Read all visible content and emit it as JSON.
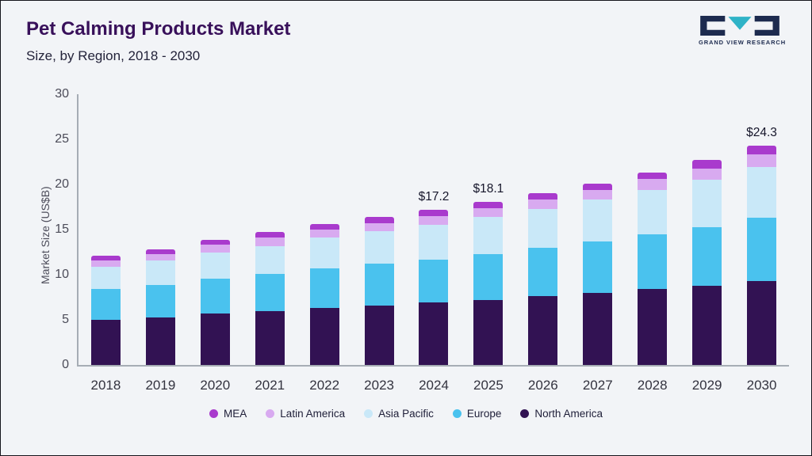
{
  "header": {
    "title": "Pet Calming Products Market",
    "subtitle": "Size, by Region, 2018 - 2030",
    "logo_text": "GRAND VIEW RESEARCH"
  },
  "colors": {
    "background": "#f2f4f7",
    "title": "#38105a",
    "axis": "#a6adb5",
    "logo_dark": "#1d2b4f",
    "logo_teal": "#2fb3c7"
  },
  "chart_data": {
    "type": "bar",
    "stacked": true,
    "title": "Pet Calming Products Market Size, by Region, 2018 - 2030",
    "ylabel": "Market Size (US$B)",
    "ylim": [
      0,
      30
    ],
    "yticks": [
      0,
      5,
      10,
      15,
      20,
      25,
      30
    ],
    "grid": false,
    "legend_position": "bottom",
    "categories": [
      "2018",
      "2019",
      "2020",
      "2021",
      "2022",
      "2023",
      "2024",
      "2025",
      "2026",
      "2027",
      "2028",
      "2029",
      "2030"
    ],
    "series": [
      {
        "name": "North America",
        "color": "#321253",
        "values": [
          5.0,
          5.3,
          5.7,
          6.0,
          6.3,
          6.6,
          6.9,
          7.2,
          7.6,
          8.0,
          8.4,
          8.8,
          9.3
        ]
      },
      {
        "name": "Europe",
        "color": "#4ac2ee",
        "values": [
          3.4,
          3.6,
          3.9,
          4.1,
          4.4,
          4.6,
          4.8,
          5.1,
          5.4,
          5.7,
          6.1,
          6.5,
          7.0
        ]
      },
      {
        "name": "Asia Pacific",
        "color": "#c9e8f8",
        "values": [
          2.5,
          2.7,
          2.9,
          3.1,
          3.4,
          3.6,
          3.8,
          4.1,
          4.3,
          4.6,
          4.9,
          5.2,
          5.6
        ]
      },
      {
        "name": "Latin America",
        "color": "#d8aaf0",
        "values": [
          0.7,
          0.7,
          0.8,
          0.9,
          0.9,
          0.9,
          1.0,
          1.0,
          1.0,
          1.1,
          1.2,
          1.3,
          1.4
        ]
      },
      {
        "name": "MEA",
        "color": "#a93acd",
        "values": [
          0.5,
          0.5,
          0.6,
          0.6,
          0.6,
          0.7,
          0.7,
          0.7,
          0.7,
          0.7,
          0.7,
          0.9,
          1.0
        ]
      }
    ],
    "totals": [
      12.1,
      12.8,
      13.9,
      14.7,
      15.6,
      16.4,
      17.2,
      18.1,
      19.0,
      20.1,
      21.3,
      22.7,
      24.3
    ],
    "annotations": [
      {
        "category": "2024",
        "text": "$17.2"
      },
      {
        "category": "2025",
        "text": "$18.1"
      },
      {
        "category": "2030",
        "text": "$24.3"
      }
    ],
    "legend_order": [
      "MEA",
      "Latin America",
      "Asia Pacific",
      "Europe",
      "North America"
    ]
  }
}
